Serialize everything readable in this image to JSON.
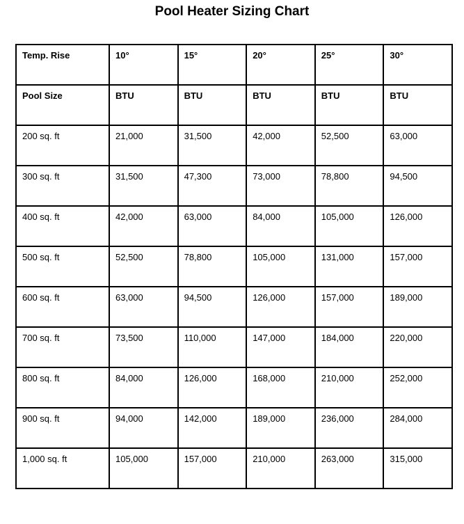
{
  "title": "Pool Heater Sizing Chart",
  "table": {
    "header_rows": [
      [
        "Temp. Rise",
        "10°",
        "15°",
        "20°",
        "25°",
        "30°"
      ],
      [
        "Pool Size",
        "BTU",
        "BTU",
        "BTU",
        "BTU",
        "BTU"
      ]
    ],
    "rows": [
      [
        "200 sq. ft",
        "21,000",
        "31,500",
        "42,000",
        "52,500",
        "63,000"
      ],
      [
        "300 sq. ft",
        "31,500",
        "47,300",
        "73,000",
        "78,800",
        "94,500"
      ],
      [
        "400 sq. ft",
        "42,000",
        "63,000",
        "84,000",
        "105,000",
        "126,000"
      ],
      [
        "500 sq. ft",
        "52,500",
        "78,800",
        "105,000",
        "131,000",
        "157,000"
      ],
      [
        "600 sq. ft",
        "63,000",
        "94,500",
        "126,000",
        "157,000",
        "189,000"
      ],
      [
        "700 sq. ft",
        "73,500",
        "110,000",
        "147,000",
        "184,000",
        "220,000"
      ],
      [
        "800 sq. ft",
        "84,000",
        "126,000",
        "168,000",
        "210,000",
        "252,000"
      ],
      [
        "900 sq. ft",
        "94,000",
        "142,000",
        "189,000",
        "236,000",
        "284,000"
      ],
      [
        "1,000 sq. ft",
        "105,000",
        "157,000",
        "210,000",
        "263,000",
        "315,000"
      ]
    ]
  }
}
